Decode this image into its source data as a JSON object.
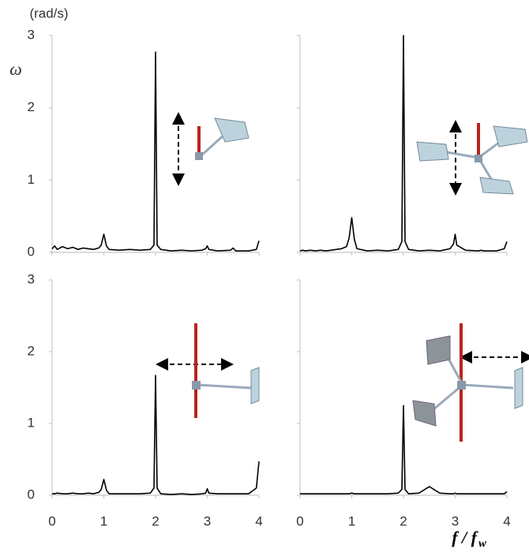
{
  "y_unit": "(rad/s)",
  "y_label": "ω",
  "x_label": "f / f",
  "x_label_subscript": "w",
  "chart_data": [
    {
      "type": "line",
      "color": "#000000",
      "xlim": [
        0,
        4
      ],
      "ylim": [
        0,
        3
      ],
      "xticks": [
        0,
        1,
        2,
        3,
        4
      ],
      "yticks": [
        0,
        1,
        2,
        3
      ],
      "x": [
        0,
        0.05,
        0.1,
        0.2,
        0.3,
        0.4,
        0.5,
        0.6,
        0.7,
        0.8,
        0.9,
        0.95,
        1,
        1.05,
        1.1,
        1.3,
        1.5,
        1.7,
        1.9,
        1.97,
        2,
        2.03,
        2.1,
        2.3,
        2.5,
        2.7,
        2.9,
        2.97,
        3,
        3.03,
        3.2,
        3.45,
        3.5,
        3.55,
        3.8,
        3.95,
        4
      ],
      "values": [
        0.05,
        0.09,
        0.04,
        0.08,
        0.05,
        0.07,
        0.04,
        0.06,
        0.05,
        0.04,
        0.06,
        0.1,
        0.25,
        0.09,
        0.04,
        0.03,
        0.04,
        0.03,
        0.04,
        0.1,
        2.77,
        0.1,
        0.04,
        0.02,
        0.03,
        0.02,
        0.03,
        0.05,
        0.09,
        0.04,
        0.02,
        0.03,
        0.06,
        0.02,
        0.02,
        0.04,
        0.16
      ]
    },
    {
      "type": "line",
      "color": "#000000",
      "xlim": [
        0,
        4
      ],
      "ylim": [
        0,
        3
      ],
      "xticks": [
        0,
        1,
        2,
        3,
        4
      ],
      "yticks": [
        0,
        1,
        2,
        3
      ],
      "x": [
        0,
        0.05,
        0.1,
        0.2,
        0.3,
        0.4,
        0.5,
        0.6,
        0.7,
        0.8,
        0.9,
        0.95,
        1,
        1.05,
        1.1,
        1.3,
        1.5,
        1.7,
        1.9,
        1.97,
        2,
        2.03,
        2.1,
        2.3,
        2.5,
        2.7,
        2.9,
        2.97,
        3,
        3.03,
        3.2,
        3.45,
        3.5,
        3.55,
        3.8,
        3.95,
        4
      ],
      "values": [
        0.02,
        0.03,
        0.02,
        0.03,
        0.02,
        0.03,
        0.02,
        0.03,
        0.04,
        0.05,
        0.08,
        0.2,
        0.48,
        0.18,
        0.05,
        0.02,
        0.03,
        0.02,
        0.04,
        0.15,
        3,
        0.15,
        0.04,
        0.02,
        0.03,
        0.02,
        0.05,
        0.12,
        0.25,
        0.1,
        0.03,
        0.02,
        0.03,
        0.02,
        0.02,
        0.05,
        0.15
      ]
    },
    {
      "type": "line",
      "color": "#000000",
      "xlim": [
        0,
        4
      ],
      "ylim": [
        0,
        3
      ],
      "xticks": [
        0,
        1,
        2,
        3,
        4
      ],
      "yticks": [
        0,
        1,
        2,
        3
      ],
      "x": [
        0,
        0.05,
        0.1,
        0.2,
        0.3,
        0.4,
        0.5,
        0.6,
        0.7,
        0.8,
        0.9,
        0.95,
        1,
        1.05,
        1.1,
        1.3,
        1.5,
        1.7,
        1.9,
        1.97,
        2,
        2.03,
        2.1,
        2.3,
        2.5,
        2.7,
        2.9,
        2.97,
        3,
        3.03,
        3.2,
        3.45,
        3.5,
        3.55,
        3.8,
        3.95,
        4
      ],
      "values": [
        0.02,
        0.02,
        0.03,
        0.02,
        0.02,
        0.03,
        0.02,
        0.02,
        0.03,
        0.02,
        0.04,
        0.08,
        0.22,
        0.07,
        0.02,
        0.02,
        0.02,
        0.02,
        0.03,
        0.1,
        1.67,
        0.1,
        0.02,
        0.01,
        0.02,
        0.01,
        0.02,
        0.03,
        0.09,
        0.03,
        0.02,
        0.02,
        0.02,
        0.02,
        0.02,
        0.1,
        0.47
      ]
    },
    {
      "type": "line",
      "color": "#000000",
      "xlim": [
        0,
        4
      ],
      "ylim": [
        0,
        3
      ],
      "xticks": [
        0,
        1,
        2,
        3,
        4
      ],
      "yticks": [
        0,
        1,
        2,
        3
      ],
      "x": [
        0,
        0.05,
        0.1,
        0.2,
        0.3,
        0.4,
        0.5,
        0.6,
        0.7,
        0.8,
        0.9,
        0.95,
        1,
        1.05,
        1.1,
        1.3,
        1.5,
        1.7,
        1.9,
        1.97,
        2,
        2.03,
        2.1,
        2.3,
        2.5,
        2.7,
        2.9,
        2.97,
        3,
        3.03,
        3.2,
        3.45,
        3.5,
        3.55,
        3.8,
        3.95,
        4
      ],
      "values": [
        0.02,
        0.02,
        0.02,
        0.02,
        0.02,
        0.02,
        0.02,
        0.02,
        0.02,
        0.02,
        0.02,
        0.02,
        0.03,
        0.02,
        0.02,
        0.02,
        0.02,
        0.02,
        0.03,
        0.08,
        1.25,
        0.08,
        0.02,
        0.03,
        0.12,
        0.03,
        0.02,
        0.02,
        0.03,
        0.02,
        0.02,
        0.02,
        0.02,
        0.02,
        0.02,
        0.02,
        0.05
      ]
    }
  ]
}
